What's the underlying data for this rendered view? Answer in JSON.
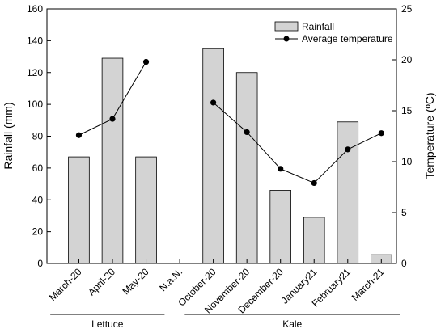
{
  "chart_data": {
    "type": "bar",
    "categories": [
      "March-20",
      "April-20",
      "May-20",
      "N.a.N.",
      "October-20",
      "November-20",
      "December-20",
      "January21",
      "February21",
      "March-21"
    ],
    "series": [
      {
        "name": "Rainfall",
        "type": "bar",
        "axis": "left",
        "values": [
          67,
          129,
          67,
          null,
          135,
          120,
          46,
          29,
          89,
          5.5
        ]
      },
      {
        "name": "Average temperature",
        "type": "line",
        "axis": "right",
        "values": [
          12.6,
          14.2,
          19.8,
          null,
          15.8,
          12.9,
          9.3,
          7.9,
          11.2,
          12.8
        ]
      }
    ],
    "ylabel": "Rainfall (mm)",
    "y2label": "Temperature (ºC)",
    "ylim": [
      0,
      160
    ],
    "y2lim": [
      0,
      25
    ],
    "yticks": [
      "0",
      "20",
      "40",
      "60",
      "80",
      "100",
      "120",
      "140",
      "160"
    ],
    "y2ticks": [
      "0",
      "5",
      "10",
      "15",
      "20",
      "25"
    ],
    "groups": [
      {
        "label": "Lettuce",
        "from": 0,
        "to": 2
      },
      {
        "label": "Kale",
        "from": 4,
        "to": 9
      }
    ],
    "legend": "top-right",
    "grid": false,
    "colors": {
      "bar_fill": "#d3d3d3",
      "bar_stroke": "#000000",
      "line": "#000000"
    }
  }
}
